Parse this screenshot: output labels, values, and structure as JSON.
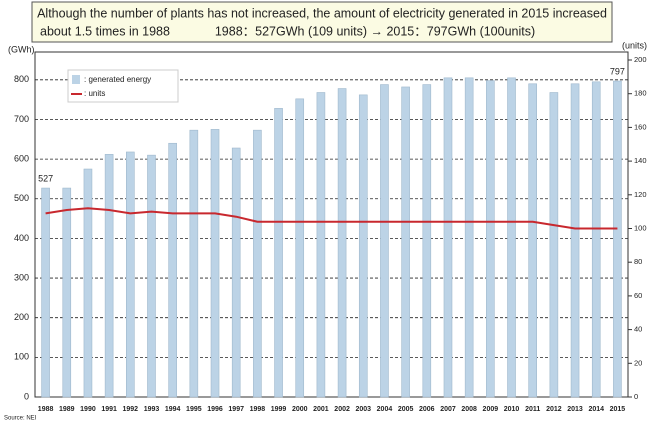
{
  "chart_data": {
    "type": "bar_line",
    "title_lines": [
      "Although the number of plants has not increased, the amount of electricity generated in 2015 increased",
      "about 1.5 times in 1988",
      "1988：527GWh (109 units)  →  2015：797GWh (100units)"
    ],
    "ylabel": "(GWh)",
    "y2label": "(units)",
    "source": "Source: NEI",
    "categories": [
      "1988",
      "1989",
      "1990",
      "1991",
      "1992",
      "1993",
      "1994",
      "1995",
      "1996",
      "1997",
      "1998",
      "1999",
      "2000",
      "2001",
      "2002",
      "2003",
      "2004",
      "2005",
      "2006",
      "2007",
      "2008",
      "2009",
      "2010",
      "2011",
      "2012",
      "2013",
      "2014",
      "2015"
    ],
    "series": [
      {
        "name": ": generated energy",
        "color": "#bcd3e6",
        "type": "bar",
        "values": [
          527,
          527,
          575,
          612,
          618,
          610,
          640,
          673,
          675,
          628,
          673,
          728,
          752,
          768,
          778,
          762,
          788,
          782,
          788,
          805,
          805,
          798,
          805,
          790,
          768,
          790,
          795,
          797
        ]
      },
      {
        "name": ": units",
        "color": "#c8282e",
        "type": "line",
        "axis": "y2",
        "values": [
          109,
          111,
          112,
          111,
          109,
          110,
          109,
          109,
          109,
          107,
          104,
          104,
          104,
          104,
          104,
          104,
          104,
          104,
          104,
          104,
          104,
          104,
          104,
          104,
          102,
          100,
          100,
          100
        ]
      }
    ],
    "ylim": [
      0,
      850
    ],
    "yticks": [
      0,
      100,
      200,
      300,
      400,
      500,
      600,
      700,
      800
    ],
    "y2lim": [
      0,
      200
    ],
    "y2ticks": [
      0,
      20,
      40,
      60,
      80,
      100,
      120,
      140,
      160,
      180,
      200
    ],
    "grid": true
  }
}
